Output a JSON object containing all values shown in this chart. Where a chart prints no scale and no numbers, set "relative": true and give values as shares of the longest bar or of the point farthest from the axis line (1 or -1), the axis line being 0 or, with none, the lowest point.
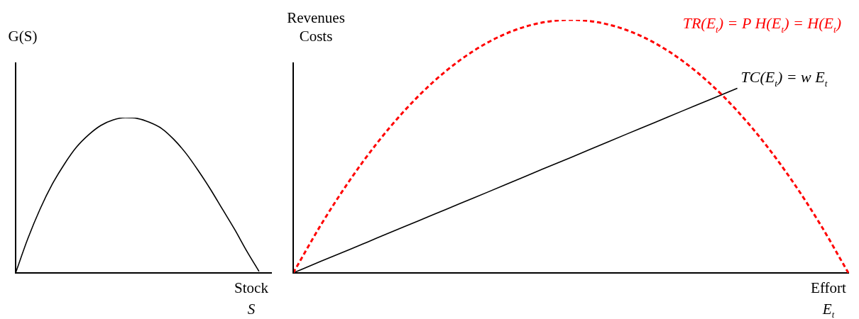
{
  "chart_data": [
    {
      "type": "line",
      "relative": true,
      "ylabel": "G(S)",
      "xlabel": "Stock\nS",
      "legend": false,
      "grid": false,
      "marker": "none",
      "categories": [
        null,
        null,
        null,
        null,
        null,
        null,
        null,
        null,
        null,
        null,
        null,
        null,
        null,
        null,
        null,
        null,
        null,
        null,
        null,
        null,
        null,
        null
      ],
      "series": [
        {
          "color": "#000000",
          "line_style": "solid",
          "values": [
            0,
            0.22,
            0.41,
            0.57,
            0.7,
            0.81,
            0.89,
            0.95,
            0.985,
            1.0,
            0.995,
            0.97,
            0.93,
            0.86,
            0.77,
            0.66,
            0.54,
            0.41,
            0.28,
            0.14,
            0.01,
            null
          ]
        }
      ]
    },
    {
      "type": "line",
      "relative": true,
      "ylabel": "Revenues\nCosts",
      "xlabel": "Effort\nE$_{t}$",
      "legend": false,
      "grid": false,
      "marker": "none",
      "categories": [
        null,
        null,
        null,
        null,
        null,
        null,
        null,
        null,
        null,
        null,
        null,
        null,
        null,
        null,
        null,
        null,
        null,
        null,
        null,
        null,
        null
      ],
      "series": [
        {
          "name": "TR(E$_{t}$) = P H(E$_{t}$) = H(E$_{t}$)",
          "color": "#ff0000",
          "line_style": "dashed",
          "values": [
            0,
            0.19,
            0.36,
            0.51,
            0.64,
            0.75,
            0.84,
            0.91,
            0.96,
            0.99,
            1.0,
            0.99,
            0.96,
            0.91,
            0.84,
            0.75,
            0.64,
            0.51,
            0.36,
            0.19,
            0
          ]
        },
        {
          "name": "TC(E$_{t}$) = w E$_{t}$",
          "color": "#000000",
          "line_style": "solid",
          "values": [
            0,
            0.046,
            0.091,
            0.137,
            0.183,
            0.228,
            0.274,
            0.319,
            0.365,
            0.411,
            0.456,
            0.502,
            0.548,
            0.593,
            0.639,
            0.684,
            0.73,
            null,
            null,
            null,
            null
          ]
        }
      ]
    }
  ]
}
